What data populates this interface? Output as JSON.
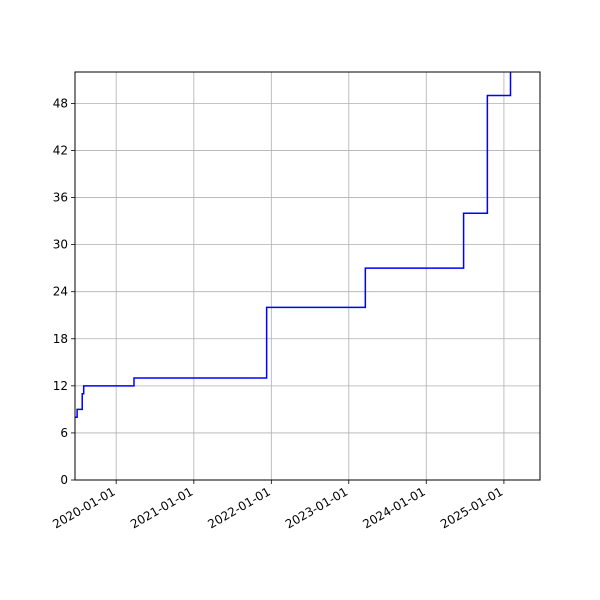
{
  "chart_data": {
    "type": "line",
    "title": "",
    "xlabel": "",
    "ylabel": "",
    "x_axis_type": "date",
    "xlim": [
      "2019-06-21",
      "2025-06-20"
    ],
    "ylim": [
      0,
      52
    ],
    "x_tick_labels": [
      "2020-01-01",
      "2021-01-01",
      "2022-01-01",
      "2023-01-01",
      "2024-01-01",
      "2025-01-01"
    ],
    "y_tick_labels": [
      "0",
      "6",
      "12",
      "18",
      "24",
      "30",
      "36",
      "42",
      "48"
    ],
    "y_ticks": [
      0,
      6,
      12,
      18,
      24,
      30,
      36,
      42,
      48
    ],
    "grid": true,
    "line_style": "step",
    "line_color": "#0000ff",
    "series": [
      {
        "points": [
          {
            "x": "2019-06-21",
            "y": 8
          },
          {
            "x": "2019-07-01",
            "y": 9
          },
          {
            "x": "2019-07-25",
            "y": 11
          },
          {
            "x": "2019-08-01",
            "y": 12
          },
          {
            "x": "2020-03-25",
            "y": 13
          },
          {
            "x": "2021-12-10",
            "y": 22
          },
          {
            "x": "2023-03-20",
            "y": 27
          },
          {
            "x": "2024-06-25",
            "y": 34
          },
          {
            "x": "2024-10-15",
            "y": 49
          },
          {
            "x": "2025-02-01",
            "y": 52
          }
        ]
      }
    ]
  }
}
